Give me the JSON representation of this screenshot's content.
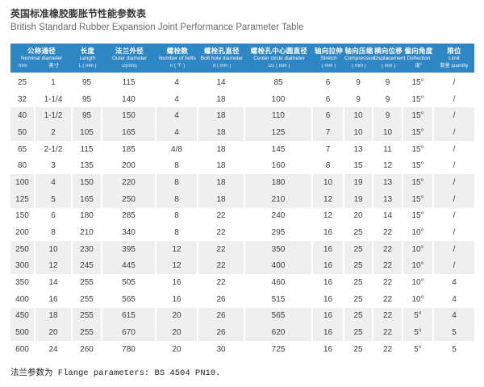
{
  "page": {
    "title_cn": "英国标准橡胶膨胀节性能参数表",
    "title_en": "British Standard Rubber Expansion Joint Performance Parameter Table",
    "footnote": "法兰参数为 Flange parameters: BS 4504 PN10."
  },
  "colors": {
    "header_bg": "#2e86c4",
    "header_text": "#ffffff",
    "stripe_bg": "#efefef"
  },
  "table": {
    "nominal_group": {
      "cn": "公称通径",
      "en": "Nominal diameter",
      "unit_mm": "mm",
      "unit_inch": "英寸"
    },
    "columns": [
      {
        "cn": "长度",
        "en": "Length",
        "unit": "L ( mm )"
      },
      {
        "cn": "法兰外径",
        "en": "Outer diameter",
        "unit": "D(mm)"
      },
      {
        "cn": "螺栓数",
        "en": "Number of bolts",
        "unit": "n ( 个 )"
      },
      {
        "cn": "螺栓孔直径",
        "en": "Bolt hole diameter",
        "unit": "d ( mm )"
      },
      {
        "cn": "螺栓孔中心圆直径",
        "en": "Center circle diameter",
        "unit": "D1 ( mm )"
      },
      {
        "cn": "轴向拉伸",
        "en": "Stretch",
        "unit": "( mm )"
      },
      {
        "cn": "轴向压缩",
        "en": "Compression",
        "unit": "( mm )"
      },
      {
        "cn": "横向位移",
        "en": "Displacement",
        "unit": "( mm )"
      },
      {
        "cn": "偏向角度",
        "en": "Deflection",
        "unit": "度°"
      },
      {
        "cn": "限位",
        "en": "Limit",
        "unit": "数量 quantity"
      }
    ],
    "rows": [
      [
        "25",
        "1",
        "95",
        "115",
        "4",
        "14",
        "85",
        "6",
        "9",
        "9",
        "15°",
        "/"
      ],
      [
        "32",
        "1-1/4",
        "95",
        "140",
        "4",
        "18",
        "100",
        "6",
        "9",
        "9",
        "15°",
        "/"
      ],
      [
        "40",
        "1-1/2",
        "95",
        "150",
        "4",
        "18",
        "110",
        "6",
        "10",
        "9",
        "15°",
        "/"
      ],
      [
        "50",
        "2",
        "105",
        "165",
        "4",
        "18",
        "125",
        "7",
        "10",
        "10",
        "15°",
        "/"
      ],
      [
        "65",
        "2-1/2",
        "115",
        "185",
        "4/8",
        "18",
        "145",
        "7",
        "13",
        "11",
        "15°",
        "/"
      ],
      [
        "80",
        "3",
        "135",
        "200",
        "8",
        "18",
        "160",
        "8",
        "15",
        "12",
        "15°",
        "/"
      ],
      [
        "100",
        "4",
        "150",
        "220",
        "8",
        "18",
        "180",
        "10",
        "19",
        "13",
        "15°",
        "/"
      ],
      [
        "125",
        "5",
        "165",
        "250",
        "8",
        "18",
        "210",
        "12",
        "19",
        "13",
        "15°",
        "/"
      ],
      [
        "150",
        "6",
        "180",
        "285",
        "8",
        "22",
        "240",
        "12",
        "20",
        "14",
        "15°",
        "/"
      ],
      [
        "200",
        "8",
        "210",
        "340",
        "8",
        "22",
        "295",
        "16",
        "25",
        "22",
        "10°",
        "/"
      ],
      [
        "250",
        "10",
        "230",
        "395",
        "12",
        "22",
        "350",
        "16",
        "25",
        "22",
        "10°",
        "/"
      ],
      [
        "300",
        "12",
        "245",
        "445",
        "12",
        "22",
        "400",
        "16",
        "25",
        "22",
        "10°",
        "/"
      ],
      [
        "350",
        "14",
        "255",
        "505",
        "16",
        "22",
        "460",
        "16",
        "25",
        "22",
        "10°",
        "4"
      ],
      [
        "400",
        "16",
        "255",
        "565",
        "16",
        "26",
        "515",
        "16",
        "25",
        "22",
        "10°",
        "4"
      ],
      [
        "450",
        "18",
        "255",
        "615",
        "20",
        "26",
        "565",
        "16",
        "25",
        "22",
        "5°",
        "4"
      ],
      [
        "500",
        "20",
        "255",
        "670",
        "20",
        "26",
        "620",
        "16",
        "25",
        "22",
        "5°",
        "5"
      ],
      [
        "600",
        "24",
        "260",
        "780",
        "20",
        "30",
        "725",
        "16",
        "25",
        "22",
        "5°",
        "5"
      ]
    ]
  }
}
